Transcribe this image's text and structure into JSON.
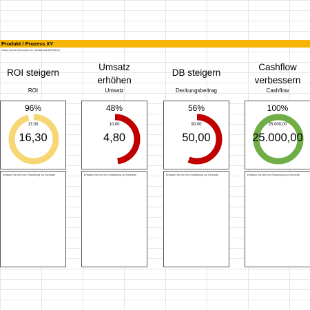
{
  "header": {
    "title": "Produkt / Prozess XY",
    "instruction": "Geben Sie die Kennzahlen im Tabellenblatt DATEN ein."
  },
  "kpis": [
    {
      "title": "ROI steigern",
      "subtitle": "ROI",
      "percent_label": "96%",
      "fraction": 0.96,
      "target": "17,00",
      "value": "16,30",
      "color": "#f7d774",
      "note": "Erfassen Sie hier Ihre Erläuterung zur Kennzahl"
    },
    {
      "title": "Umsatz erhöhen",
      "subtitle": "Umsatz",
      "percent_label": "48%",
      "fraction": 0.48,
      "target": "10,00",
      "value": "4,80",
      "color": "#c00000",
      "note": "Erfassen Sie hier Ihre Erläuterung zur Kennzahl"
    },
    {
      "title": "DB steigern",
      "subtitle": "Deckungsbeitrag",
      "percent_label": "56%",
      "fraction": 0.56,
      "target": "90,00",
      "value": "50,00",
      "color": "#c00000",
      "note": "Erfassen Sie hier Ihre Erläuterung zur Kennzahl"
    },
    {
      "title": "Cashflow verbessern",
      "subtitle": "Cashflow",
      "percent_label": "100%",
      "fraction": 1.0,
      "target": "25.000,00",
      "value": "25.000,00",
      "color": "#70ad47",
      "note": "Erfassen Sie hier Ihre Erläuterung zur Kennzahl"
    }
  ]
}
